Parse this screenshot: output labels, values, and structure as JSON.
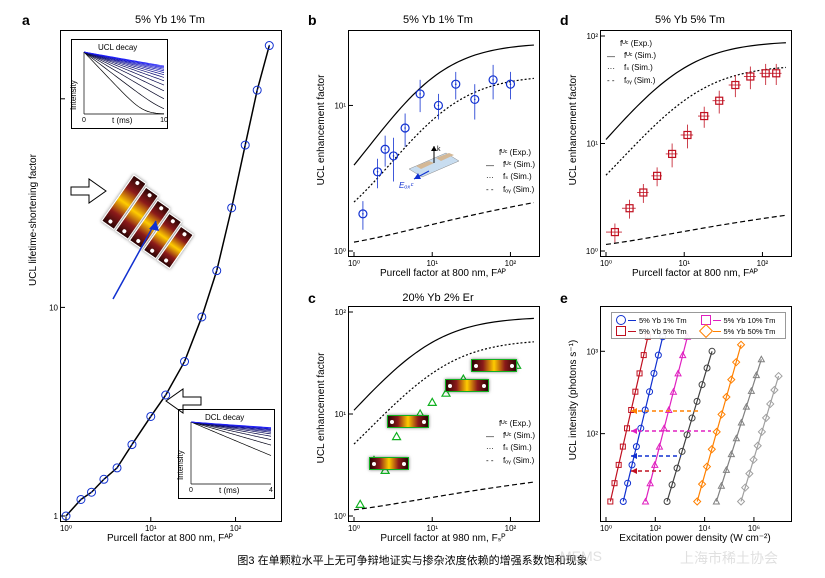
{
  "caption": "图3 在单颗粒水平上无可争辩地证实与掺杂浓度依赖的增强系数饱和现象",
  "watermark_left": "MEMS",
  "watermark_right": "上海市稀土协会",
  "panel_a": {
    "label": "a",
    "title": "5% Yb 1% Tm",
    "xlabel": "Purcell factor at 800 nm, Fᴬᴾ",
    "ylabel": "UCL lifetime-shortening factor",
    "xlim": [
      1,
      300
    ],
    "ylim": [
      1,
      200
    ],
    "xticks": [
      1,
      10,
      100
    ],
    "xtick_labels": [
      "10⁰",
      "10¹",
      "10²"
    ],
    "yticks": [
      1,
      10,
      100
    ],
    "ytick_labels": [
      "1",
      "10",
      ""
    ],
    "data_exp": [
      {
        "x": 1.0,
        "y": 1.0
      },
      {
        "x": 1.5,
        "y": 1.2
      },
      {
        "x": 2.0,
        "y": 1.3
      },
      {
        "x": 2.8,
        "y": 1.5
      },
      {
        "x": 4,
        "y": 1.7
      },
      {
        "x": 6,
        "y": 2.2
      },
      {
        "x": 10,
        "y": 3.0
      },
      {
        "x": 15,
        "y": 3.8
      },
      {
        "x": 25,
        "y": 5.5
      },
      {
        "x": 40,
        "y": 9
      },
      {
        "x": 60,
        "y": 15
      },
      {
        "x": 90,
        "y": 30
      },
      {
        "x": 130,
        "y": 60
      },
      {
        "x": 180,
        "y": 110
      },
      {
        "x": 250,
        "y": 180
      }
    ],
    "curve_color": "#000000",
    "marker_color": "#1030d0",
    "marker_style": "circle-open-dot",
    "inset_ucl": {
      "title": "UCL decay",
      "xlabel": "t (ms)",
      "xlim": [
        0,
        10
      ],
      "ylabel": "Intensity",
      "gradient_from": "#000000",
      "gradient_to": "#2020ff",
      "n_curves": 14
    },
    "inset_dcl": {
      "title": "DCL decay",
      "xlabel": "t (ms)",
      "xlim": [
        0,
        4
      ],
      "ylabel": "Intensity",
      "gradient_from": "#000000",
      "gradient_to": "#2020ff",
      "n_curves": 12
    }
  },
  "panel_b": {
    "label": "b",
    "title": "5% Yb 1% Tm",
    "xlabel": "Purcell factor at 800 nm, Fᴬᴾ",
    "ylabel": "UCL enhancement factor",
    "xlim": [
      1,
      200
    ],
    "ylim": [
      1,
      30
    ],
    "marker_color": "#1030d0",
    "data_exp": [
      {
        "x": 1.3,
        "y": 1.8,
        "ey": 0.4
      },
      {
        "x": 2.0,
        "y": 3.5,
        "ey": 0.8
      },
      {
        "x": 2.5,
        "y": 5.0,
        "ey": 1.2
      },
      {
        "x": 3.2,
        "y": 4.5,
        "ey": 1.5
      },
      {
        "x": 4.5,
        "y": 7.0,
        "ey": 1.8
      },
      {
        "x": 7,
        "y": 12,
        "ey": 3
      },
      {
        "x": 12,
        "y": 10,
        "ey": 2
      },
      {
        "x": 20,
        "y": 14,
        "ey": 3
      },
      {
        "x": 35,
        "y": 11,
        "ey": 3
      },
      {
        "x": 60,
        "y": 15,
        "ey": 4
      },
      {
        "x": 100,
        "y": 14,
        "ey": 3
      }
    ],
    "curves": [
      {
        "name": "fᵁᶜ (Sim.)",
        "style": "solid",
        "color": "#000"
      },
      {
        "name": "fₛ (Sim.)",
        "style": "dotted",
        "color": "#000"
      },
      {
        "name": "fₒᵧ (Sim.)",
        "style": "dashed",
        "color": "#000"
      }
    ],
    "legend": [
      "fᵁᶜ (Exp.)",
      "fᵁᶜ (Sim.)",
      "fₛ (Sim.)",
      "fₒᵧ (Sim.)"
    ],
    "eoxc_label": "Eₒₓᶜ"
  },
  "panel_c": {
    "label": "c",
    "title": "20% Yb 2% Er",
    "xlabel": "Purcell factor at 980 nm, Fₛᴾ",
    "ylabel": "UCL enhancement factor",
    "xlim": [
      1,
      200
    ],
    "ylim": [
      1,
      100
    ],
    "marker_color": "#10b020",
    "marker_style": "triangle-open",
    "data_exp": [
      {
        "x": 1.2,
        "y": 1.3
      },
      {
        "x": 1.8,
        "y": 3.5
      },
      {
        "x": 2.5,
        "y": 2.8
      },
      {
        "x": 3.5,
        "y": 6
      },
      {
        "x": 5,
        "y": 8
      },
      {
        "x": 7,
        "y": 10
      },
      {
        "x": 10,
        "y": 13
      },
      {
        "x": 15,
        "y": 16
      },
      {
        "x": 25,
        "y": 22
      },
      {
        "x": 40,
        "y": 28
      },
      {
        "x": 70,
        "y": 30
      },
      {
        "x": 120,
        "y": 30
      }
    ],
    "curves": [
      {
        "name": "fᵁᶜ (Sim.)",
        "style": "solid",
        "color": "#000"
      },
      {
        "name": "fₛ (Sim.)",
        "style": "dotted",
        "color": "#000"
      },
      {
        "name": "fₒᵧ (Sim.)",
        "style": "dashed",
        "color": "#000"
      }
    ],
    "legend": [
      "fᵁᶜ (Exp.)",
      "fᵁᶜ (Sim.)",
      "fₛ (Sim.)",
      "fₒᵧ (Sim.)"
    ]
  },
  "panel_d": {
    "label": "d",
    "title": "5% Yb 5% Tm",
    "xlabel": "Purcell factor at 800 nm, Fᴬᴾ",
    "ylabel": "UCL enhancement factor",
    "xlim": [
      1,
      200
    ],
    "ylim": [
      1,
      100
    ],
    "marker_color": "#c01020",
    "marker_style": "square-open",
    "data_exp": [
      {
        "x": 1.3,
        "y": 1.5,
        "ex": 0.3,
        "ey": 0.3
      },
      {
        "x": 2.0,
        "y": 2.5,
        "ex": 0.4,
        "ey": 0.5
      },
      {
        "x": 3.0,
        "y": 3.5,
        "ex": 0.5,
        "ey": 0.7
      },
      {
        "x": 4.5,
        "y": 5,
        "ex": 0.7,
        "ey": 1.0
      },
      {
        "x": 7,
        "y": 8,
        "ex": 1.2,
        "ey": 2
      },
      {
        "x": 11,
        "y": 12,
        "ex": 2,
        "ey": 3
      },
      {
        "x": 18,
        "y": 18,
        "ex": 3,
        "ey": 4
      },
      {
        "x": 28,
        "y": 25,
        "ex": 5,
        "ey": 6
      },
      {
        "x": 45,
        "y": 35,
        "ex": 8,
        "ey": 8
      },
      {
        "x": 70,
        "y": 42,
        "ex": 12,
        "ey": 10
      },
      {
        "x": 110,
        "y": 45,
        "ex": 18,
        "ey": 10
      },
      {
        "x": 150,
        "y": 45,
        "ex": 25,
        "ey": 10
      }
    ],
    "curves": [
      {
        "name": "fᵁᶜ (Sim.)",
        "style": "solid",
        "color": "#000"
      },
      {
        "name": "fₛ (Sim.)",
        "style": "dotted",
        "color": "#000"
      },
      {
        "name": "fₒᵧ (Sim.)",
        "style": "dashed",
        "color": "#000"
      }
    ],
    "legend": [
      "fᵁᶜ (Exp.)",
      "fᵁᶜ (Sim.)",
      "fₛ (Sim.)",
      "fₒᵧ (Sim.)"
    ]
  },
  "panel_e": {
    "label": "e",
    "xlabel": "Excitation power density (W cm⁻²)",
    "ylabel": "UCL intensity (photons s⁻¹)",
    "xlim": [
      1,
      20000000.0
    ],
    "ylim": [
      10,
      3000
    ],
    "series": [
      {
        "name": "5% Yb 1% Tm",
        "color": "#1030d0",
        "marker": "circle",
        "x0": 5,
        "x1": 200,
        "y0": 15,
        "y1": 1500
      },
      {
        "name": "5% Yb 10% Tm",
        "color": "#e020c0",
        "marker": "triangle",
        "x0": 40,
        "x1": 2000,
        "y0": 15,
        "y1": 1500
      },
      {
        "name": "5% Yb 5% Tm",
        "color": "#c01020",
        "marker": "square",
        "x0": 1.5,
        "x1": 50,
        "y0": 15,
        "y1": 1500
      },
      {
        "name": "5% Yb 50% Tm",
        "color": "#ff8000",
        "marker": "diamond",
        "x0": 5000,
        "x1": 300000,
        "y0": 15,
        "y1": 1200
      }
    ],
    "series_gray1": {
      "color": "#404040",
      "marker": "circle",
      "x0": 300,
      "x1": 20000,
      "y0": 15,
      "y1": 1000
    },
    "series_gray2": {
      "color": "#808080",
      "marker": "triangle",
      "x0": 30000,
      "x1": 2000000,
      "y0": 15,
      "y1": 800
    },
    "series_gray3": {
      "color": "#a0a0a0",
      "marker": "diamond",
      "x0": 300000,
      "x1": 10000000,
      "y0": 15,
      "y1": 500
    },
    "xticks": [
      1,
      100,
      10000,
      1000000
    ],
    "xtick_labels": [
      "10⁰",
      "10²",
      "10⁴",
      "10⁶"
    ],
    "yticks": [
      100,
      1000
    ],
    "ytick_labels": [
      "10²",
      "10³"
    ],
    "legend": [
      "5% Yb 1% Tm",
      "5% Yb 10% Tm",
      "5% Yb 5% Tm",
      "5% Yb 50% Tm"
    ]
  }
}
